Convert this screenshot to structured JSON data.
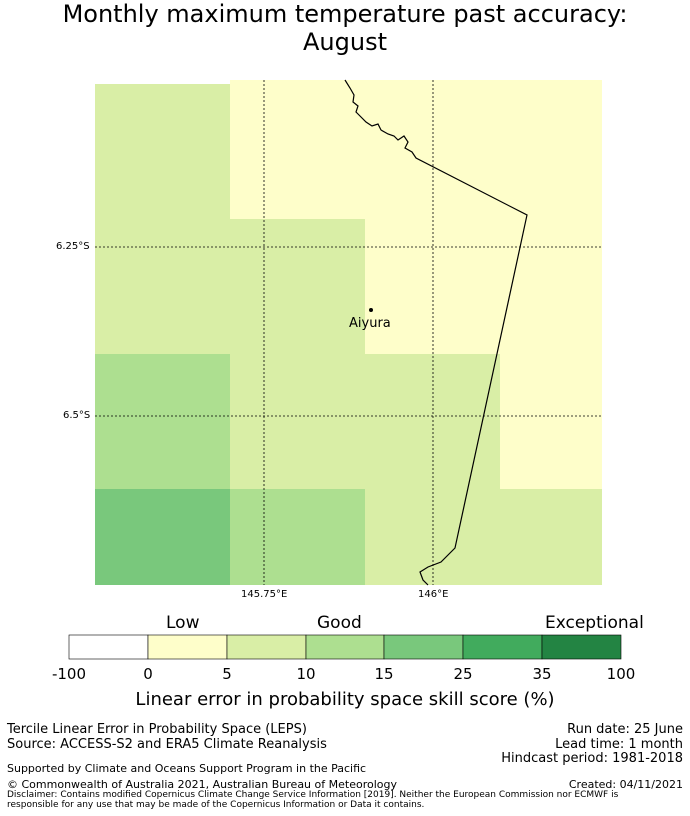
{
  "title_line1": "Monthly maximum temperature past accuracy:",
  "title_line2": "August",
  "map": {
    "place_label": "Aiyura",
    "lat_labels": [
      "6.25°S",
      "6.5°S"
    ],
    "lon_labels": [
      "145.75°E",
      "146°E"
    ],
    "grid_values": [
      [
        7,
        3,
        3,
        3
      ],
      [
        7,
        7,
        3,
        0
      ],
      [
        12,
        7,
        7,
        3
      ],
      [
        20,
        12,
        7,
        7
      ]
    ],
    "colors": {
      "neg": "#ffffff",
      "c0_5": "#fefeca",
      "c5_10": "#d9eea6",
      "c10_15": "#addf90",
      "c15_25": "#79c87c",
      "c25_35": "#41ab5d",
      "c35_100": "#238443"
    }
  },
  "colorbar": {
    "category_low": "Low",
    "category_good": "Good",
    "category_exceptional": "Exceptional",
    "ticks": [
      "-100",
      "0",
      "5",
      "10",
      "15",
      "25",
      "35",
      "100"
    ],
    "title": "Linear error in probability space skill score (%)"
  },
  "info": {
    "method": "Tercile Linear Error in Probability Space (LEPS)",
    "source": "Source: ACCESS-S2 and ERA5 Climate Reanalysis",
    "supported": "Supported by Climate and Oceans Support Program in the Pacific",
    "copyright": "© Commonwealth of Australia 2021, Australian Bureau of Meteorology",
    "disclaimer": "Disclaimer: Contains modified Copernicus Climate Change Service Information [2019]. Neither the European Commission nor ECMWF is responsible for any use that may be made of the Copernicus Information or Data it contains.",
    "run_date": "Run date: 25 June",
    "lead_time": "Lead time: 1 month",
    "hindcast": "Hindcast period: 1981-2018",
    "created": "Created: 04/11/2021"
  }
}
